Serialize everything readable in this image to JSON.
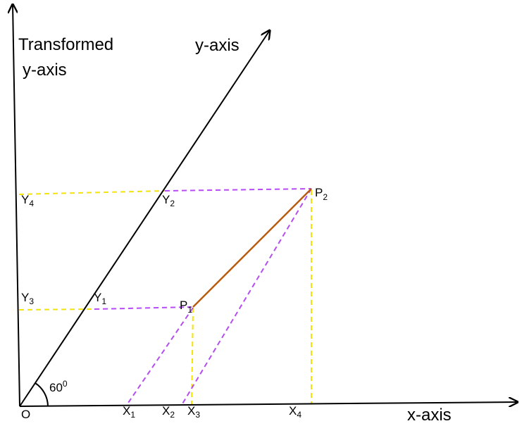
{
  "labels": {
    "transformed_y_axis_line1": "Transformed",
    "transformed_y_axis_line2": "y-axis",
    "y_axis": "y-axis",
    "x_axis": "x-axis",
    "origin": "O",
    "angle_base": "60",
    "angle_sup": "0",
    "p1": "P",
    "p1_sub": "1",
    "p2": "P",
    "p2_sub": "2",
    "x1": "X",
    "x1_sub": "1",
    "x2": "X",
    "x2_sub": "2",
    "x3": "X",
    "x3_sub": "3",
    "x4": "X",
    "x4_sub": "4",
    "y1": "Y",
    "y1_sub": "1",
    "y2": "Y",
    "y2_sub": "2",
    "y3": "Y",
    "y3_sub": "3",
    "y4": "Y",
    "y4_sub": "4"
  },
  "colors": {
    "axes": "#000000",
    "projection_yellow": "#f5e400",
    "projection_violet": "#b44ef0",
    "segment_p1_p2": "#b85c10"
  }
}
